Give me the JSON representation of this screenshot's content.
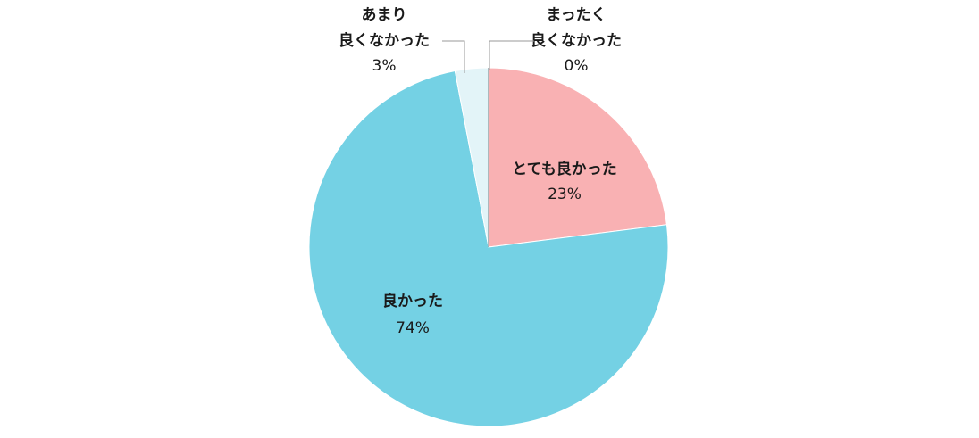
{
  "chart_data": {
    "type": "pie",
    "categories": [
      "とても良かった",
      "良かった",
      "あまり\n良くなかった",
      "まったく\n良くなかった"
    ],
    "values": [
      23,
      74,
      3,
      0
    ],
    "value_labels": [
      "23%",
      "74%",
      "3%",
      "0%"
    ],
    "colors": [
      "#f9b1b3",
      "#74d1e4",
      "#e3f4f8",
      "#9aa3a8"
    ]
  }
}
